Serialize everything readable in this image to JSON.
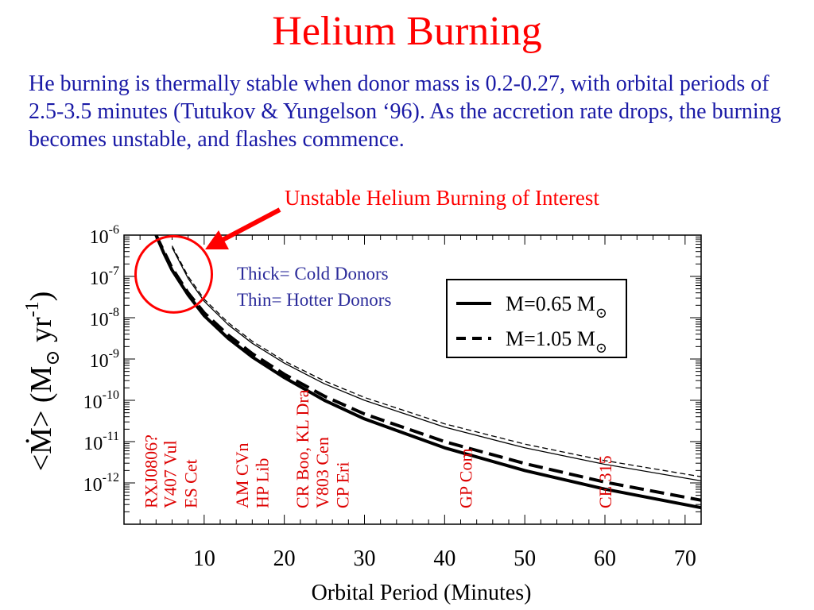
{
  "slide": {
    "title": "Helium Burning",
    "body": "He burning is thermally stable when donor mass is 0.2-0.27, with orbital periods of 2.5-3.5 minutes (Tutukov & Yungelson ‘96). As the accretion rate drops, the burning  becomes unstable, and flashes commence.",
    "callout": "Unstable Helium Burning of Interest"
  },
  "colors": {
    "title": "#ff0000",
    "body": "#1a1aa6",
    "callout": "#ff0000",
    "arrow": "#ff0000",
    "annotation_blue": "#2b2b9a",
    "object_labels": "#dd0000",
    "axes": "#000000"
  },
  "chart_data": {
    "type": "line",
    "xlabel": "Orbital Period (Minutes)",
    "ylabel_parts": [
      "<",
      "Ṁ",
      "> (M",
      "⊙",
      " yr",
      "-1",
      ")"
    ],
    "xlim": [
      0,
      72
    ],
    "ylim_log10": [
      -13,
      -6
    ],
    "yscale": "log",
    "x_ticks": [
      10,
      20,
      30,
      40,
      50,
      60,
      70
    ],
    "y_ticks": [
      {
        "base": "10",
        "exp": "-6",
        "value": -6
      },
      {
        "base": "10",
        "exp": "-7",
        "value": -7
      },
      {
        "base": "10",
        "exp": "-8",
        "value": -8
      },
      {
        "base": "10",
        "exp": "-9",
        "value": -9
      },
      {
        "base": "10",
        "exp": "-10",
        "value": -10
      },
      {
        "base": "10",
        "exp": "-11",
        "value": -11
      },
      {
        "base": "10",
        "exp": "-12",
        "value": -12
      }
    ],
    "series": [
      {
        "key": "thick-solid",
        "legend_key": "m065",
        "style": "solid",
        "weight": "thick",
        "x": [
          4,
          5,
          6,
          8,
          10,
          13,
          16,
          20,
          25,
          30,
          40,
          50,
          60,
          72
        ],
        "y": [
          -6.0,
          -6.45,
          -6.85,
          -7.45,
          -7.95,
          -8.5,
          -8.95,
          -9.45,
          -10.0,
          -10.45,
          -11.15,
          -11.7,
          -12.15,
          -12.6
        ]
      },
      {
        "key": "thick-dashed",
        "legend_key": "m105",
        "style": "dashed",
        "weight": "thick",
        "x": [
          4,
          5,
          6,
          8,
          10,
          13,
          16,
          20,
          25,
          30,
          40,
          50,
          60,
          72
        ],
        "y": [
          -6.0,
          -6.4,
          -6.8,
          -7.4,
          -7.88,
          -8.42,
          -8.87,
          -9.37,
          -9.9,
          -10.33,
          -11.0,
          -11.53,
          -11.98,
          -12.42
        ]
      },
      {
        "key": "thin-solid",
        "style": "solid",
        "weight": "thin",
        "x": [
          6,
          8,
          10,
          13,
          16,
          20,
          25,
          30,
          40,
          50,
          60,
          72
        ],
        "y": [
          -6.3,
          -7.05,
          -7.6,
          -8.17,
          -8.62,
          -9.1,
          -9.6,
          -10.0,
          -10.65,
          -11.15,
          -11.55,
          -11.95
        ]
      },
      {
        "key": "thin-dashed",
        "style": "dashed",
        "weight": "thin",
        "x": [
          6,
          8,
          10,
          13,
          16,
          20,
          25,
          30,
          40,
          50,
          60,
          72
        ],
        "y": [
          -6.26,
          -7.0,
          -7.55,
          -8.12,
          -8.57,
          -9.05,
          -9.53,
          -9.93,
          -10.57,
          -11.06,
          -11.46,
          -11.85
        ]
      }
    ],
    "legend": {
      "placement": "top-right",
      "entries": [
        {
          "key": "m065",
          "style": "solid",
          "label": "M=0.65 M",
          "sub": "⊙"
        },
        {
          "key": "m105",
          "style": "dashed",
          "label": "M=1.05 M",
          "sub": "⊙"
        }
      ]
    },
    "annotations": {
      "thick_note": "Thick= Cold Donors",
      "thin_note": "Thin= Hotter Donors"
    },
    "object_labels": [
      {
        "text": "RXJ0806?",
        "x": 3.3
      },
      {
        "text": "V407 Vul",
        "x": 5.7
      },
      {
        "text": "ES Cet",
        "x": 8.3
      },
      {
        "text": "AM CVn",
        "x": 14.7
      },
      {
        "text": "HP Lib",
        "x": 17.2
      },
      {
        "text": "CR Boo, KL Dra",
        "x": 22.2
      },
      {
        "text": "V803 Cen",
        "x": 24.7
      },
      {
        "text": "CP Eri",
        "x": 27.2
      },
      {
        "text": "GP Com",
        "x": 42.6
      },
      {
        "text": "CE 315",
        "x": 60.0
      }
    ],
    "highlight": {
      "center_x": 6.2,
      "center_log10": -6.95
    }
  }
}
